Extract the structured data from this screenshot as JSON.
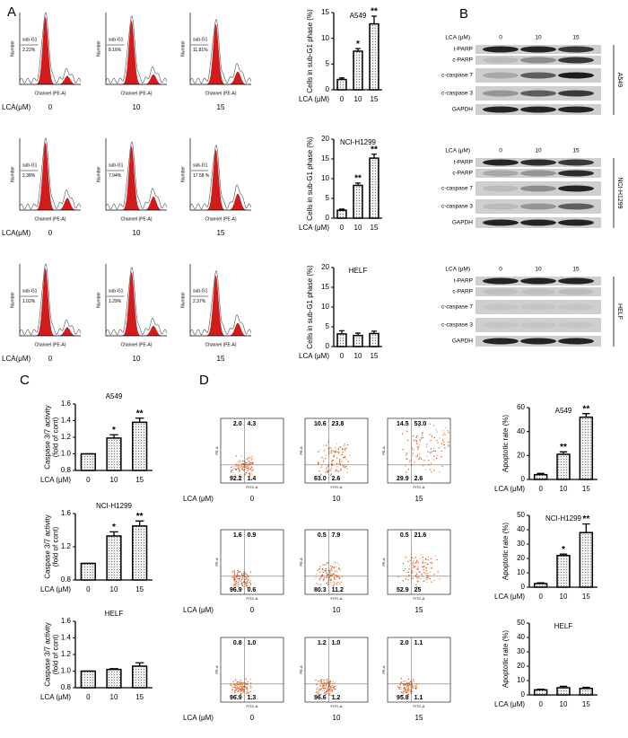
{
  "panel_labels": [
    "A",
    "B",
    "C",
    "D"
  ],
  "flow": {
    "x_title": "Channel (PE-A)",
    "y_title": "Number",
    "gate": "sub-G1",
    "dose_title": "LCA(μM)",
    "doses": [
      "0",
      "10",
      "15"
    ],
    "sub_g1": [
      [
        "2.22%",
        "8.16%",
        "11.81%"
      ],
      [
        "2.38%",
        "7.94%",
        "17.58 %"
      ],
      [
        "1.02%",
        "1.29%",
        "2.37%"
      ]
    ]
  },
  "blots": {
    "dose_title": "LCA (μM)",
    "doses": [
      "0",
      "10",
      "15"
    ],
    "bands": [
      "t-PARP",
      "c-PARP",
      "c-caspase 7",
      "c-caspase 3",
      "GAPDH"
    ],
    "cell_lines": [
      "A549",
      "NCI-H1299",
      "HELF"
    ]
  },
  "annexin": {
    "x_title": "FITC-A",
    "y_title": "PE-A",
    "dose_title": "LCA (μM)",
    "doses": [
      "0",
      "10",
      "15"
    ],
    "quadrants": [
      [
        [
          "2.0",
          "4.3",
          "92.2",
          "1.4"
        ],
        [
          "10.6",
          "23.8",
          "63.0",
          "2.6"
        ],
        [
          "14.5",
          "53.0",
          "29.9",
          "2.6"
        ]
      ],
      [
        [
          "1.6",
          "0.9",
          "96.9",
          "0.6"
        ],
        [
          "0.5",
          "7.9",
          "80.3",
          "11.2"
        ],
        [
          "0.5",
          "21.6",
          "52.9",
          "25"
        ]
      ],
      [
        [
          "0.8",
          "1.0",
          "96.9",
          "1.3"
        ],
        [
          "1.2",
          "1.0",
          "96.6",
          "1.2"
        ],
        [
          "2.0",
          "1.1",
          "95.8",
          "1.1"
        ]
      ]
    ]
  },
  "chart_data": [
    {
      "type": "bar",
      "title": "A549",
      "ylabel": "Cells in sub-G1 phase (%)",
      "xlabel": "LCA (μM)",
      "categories": [
        "0",
        "10",
        "15"
      ],
      "values": [
        2,
        7.5,
        12.8
      ],
      "errors": [
        0.3,
        0.5,
        1.5
      ],
      "significance": [
        null,
        "*",
        "**"
      ],
      "ylim": [
        0,
        15
      ],
      "yticks": [
        0,
        5,
        10,
        15
      ],
      "color": "#e6e6e6"
    },
    {
      "type": "bar",
      "title": "NCI-H1299",
      "ylabel": "Cells in sub-G1 phase (%)",
      "xlabel": "LCA (μM)",
      "categories": [
        "0",
        "10",
        "15"
      ],
      "values": [
        2,
        8.3,
        15.2
      ],
      "errors": [
        0.3,
        0.6,
        1
      ],
      "significance": [
        null,
        "**",
        "**"
      ],
      "ylim": [
        0,
        20
      ],
      "yticks": [
        0,
        5,
        10,
        15,
        20
      ],
      "color": "#e6e6e6"
    },
    {
      "type": "bar",
      "title": "HELF",
      "ylabel": "Cells in sub-G1 phase (%)",
      "xlabel": "LCA (μM)",
      "categories": [
        "0",
        "10",
        "15"
      ],
      "values": [
        3.2,
        2.8,
        3.3
      ],
      "errors": [
        0.8,
        0.6,
        0.6
      ],
      "significance": [
        null,
        null,
        null
      ],
      "ylim": [
        0,
        20
      ],
      "yticks": [
        0,
        5,
        10,
        15,
        20
      ],
      "color": "#e6e6e6"
    },
    {
      "type": "bar",
      "title": "A549",
      "ylabel": [
        "Caspase 3/7 activity",
        "(fold of cont)"
      ],
      "xlabel": "LCA (μM)",
      "categories": [
        "0",
        "10",
        "15"
      ],
      "values": [
        1,
        1.19,
        1.38
      ],
      "errors": [
        0,
        0.04,
        0.05
      ],
      "significance": [
        null,
        "*",
        "**"
      ],
      "ylim": [
        0.8,
        1.6
      ],
      "yticks": [
        0.8,
        {
          "value": 1,
          "label": "1.0"
        },
        1.2,
        1.4,
        1.6
      ],
      "color": "#e6e6e6"
    },
    {
      "type": "bar",
      "title": "NCI-H1299",
      "ylabel": [
        "Caspase 3/7 activity",
        "(fold of cont)"
      ],
      "xlabel": "LCA (μM)",
      "categories": [
        "0",
        "10",
        "15"
      ],
      "values": [
        1,
        1.33,
        1.45
      ],
      "errors": [
        0,
        0.05,
        0.06
      ],
      "significance": [
        null,
        "*",
        "**"
      ],
      "ylim": [
        0.8,
        1.6
      ],
      "yticks": [
        0.8,
        1.2,
        1.6
      ],
      "color": "#e6e6e6"
    },
    {
      "type": "bar",
      "title": "HELF",
      "ylabel": [
        "Caspase 3/7 activity",
        "(fold of cont)"
      ],
      "xlabel": "LCA (μM)",
      "categories": [
        "0",
        "10",
        "15"
      ],
      "values": [
        1,
        1.02,
        1.06
      ],
      "errors": [
        0,
        0.01,
        0.04
      ],
      "significance": [
        null,
        null,
        null
      ],
      "ylim": [
        0.8,
        1.6
      ],
      "yticks": [
        0.8,
        {
          "value": 1,
          "label": "1.0"
        },
        1.2,
        1.4,
        1.6
      ],
      "color": "#e6e6e6"
    },
    {
      "type": "bar",
      "title": "A549",
      "ylabel": "Apoptotic rate (%)",
      "xlabel": "LCA (μM)",
      "categories": [
        "0",
        "10",
        "15"
      ],
      "values": [
        4,
        21,
        52
      ],
      "errors": [
        1,
        2,
        3
      ],
      "significance": [
        null,
        "**",
        "**"
      ],
      "ylim": [
        0,
        60
      ],
      "yticks": [
        0,
        20,
        40,
        60
      ],
      "color": "#e6e6e6"
    },
    {
      "type": "bar",
      "title": "NCI-H1299",
      "ylabel": "Apoptotic rate (%)",
      "xlabel": "LCA (μM)",
      "categories": [
        "0",
        "10",
        "15"
      ],
      "values": [
        2.5,
        22,
        38
      ],
      "errors": [
        0.5,
        1,
        6
      ],
      "significance": [
        null,
        "*",
        "**"
      ],
      "ylim": [
        0,
        50
      ],
      "yticks": [
        0,
        10,
        20,
        30,
        40,
        50
      ],
      "color": "#e6e6e6"
    },
    {
      "type": "bar",
      "title": "HELF",
      "ylabel": "Apoptotic rate (%)",
      "xlabel": "LCA (μM)",
      "categories": [
        "0",
        "10",
        "15"
      ],
      "values": [
        3.5,
        5,
        4.5
      ],
      "errors": [
        0.5,
        1,
        0.8
      ],
      "significance": [
        null,
        null,
        null
      ],
      "ylim": [
        0,
        50
      ],
      "yticks": [
        0,
        10,
        20,
        30,
        40,
        50
      ],
      "color": "#e6e6e6"
    }
  ]
}
